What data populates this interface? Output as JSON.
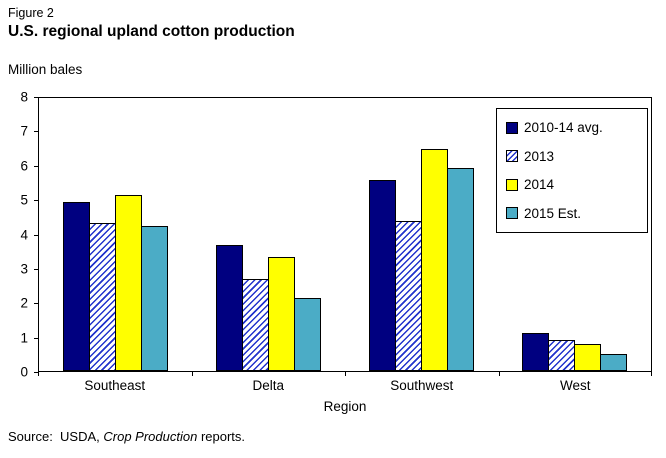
{
  "figure_label": "Figure 2",
  "title": "U.S. regional upland cotton production",
  "y_axis_title": "Million bales",
  "x_axis_title": "Region",
  "source_prefix": "Source:  USDA, ",
  "source_italic": "Crop Production",
  "source_suffix": " reports.",
  "chart_data": {
    "type": "bar",
    "title": "U.S. regional upland cotton production",
    "xlabel": "Region",
    "ylabel": "Million bales",
    "categories": [
      "Southeast",
      "Delta",
      "Southwest",
      "West"
    ],
    "series": [
      {
        "name": "2010-14 avg.",
        "fill": "navy",
        "values": [
          4.95,
          3.7,
          5.6,
          1.1
        ]
      },
      {
        "name": "2013",
        "fill": "hatch",
        "values": [
          4.35,
          2.7,
          4.4,
          0.9
        ]
      },
      {
        "name": "2014",
        "fill": "yellow",
        "values": [
          5.15,
          3.35,
          6.5,
          0.8
        ]
      },
      {
        "name": "2015 Est.",
        "fill": "teal",
        "values": [
          4.25,
          2.15,
          5.95,
          0.5
        ]
      }
    ],
    "ylim": [
      0,
      8
    ],
    "yticks": [
      0,
      1,
      2,
      3,
      4,
      5,
      6,
      7,
      8
    ],
    "grid": false,
    "legend_position": "top-right-inside",
    "colors": {
      "navy": "#000080",
      "hatch": "#2233cc",
      "yellow": "#FFFF00",
      "teal": "#4BACC6"
    }
  }
}
